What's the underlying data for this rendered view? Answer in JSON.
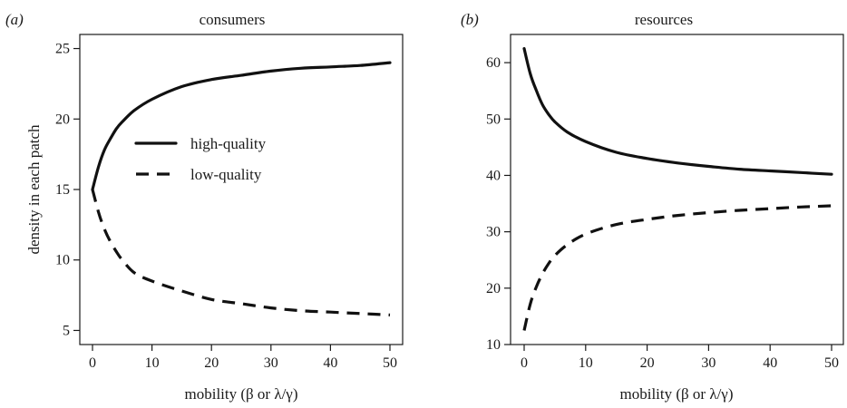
{
  "chart_data": [
    {
      "type": "line",
      "panel_label": "(a)",
      "title": "consumers",
      "ylabel": "density in each patch",
      "xlabel": "mobility (β or λ/γ)",
      "xlim": [
        0,
        50
      ],
      "ylim": [
        4,
        26
      ],
      "xticks": [
        0,
        10,
        20,
        30,
        40,
        50
      ],
      "yticks": [
        5,
        10,
        15,
        20,
        25
      ],
      "legend": {
        "position": "center",
        "entries": [
          {
            "label": "high-quality",
            "style": "solid"
          },
          {
            "label": "low-quality",
            "style": "dashed"
          }
        ]
      },
      "series": [
        {
          "name": "high-quality",
          "style": "solid",
          "x": [
            0,
            1,
            2,
            3,
            4,
            5,
            7,
            10,
            15,
            20,
            25,
            30,
            35,
            40,
            45,
            50
          ],
          "y": [
            15.0,
            16.6,
            17.8,
            18.6,
            19.3,
            19.8,
            20.6,
            21.4,
            22.3,
            22.8,
            23.1,
            23.4,
            23.6,
            23.7,
            23.8,
            24.0
          ]
        },
        {
          "name": "low-quality",
          "style": "dashed",
          "x": [
            0,
            1,
            2,
            3,
            4,
            5,
            7,
            10,
            15,
            20,
            25,
            30,
            35,
            40,
            45,
            50
          ],
          "y": [
            15.0,
            13.4,
            12.2,
            11.3,
            10.6,
            10.0,
            9.1,
            8.5,
            7.8,
            7.2,
            6.9,
            6.6,
            6.4,
            6.3,
            6.2,
            6.1
          ]
        }
      ]
    },
    {
      "type": "line",
      "panel_label": "(b)",
      "title": "resources",
      "ylabel": "",
      "xlabel": "mobility (β or λ/γ)",
      "xlim": [
        0,
        50
      ],
      "ylim": [
        10,
        65
      ],
      "xticks": [
        0,
        10,
        20,
        30,
        40,
        50
      ],
      "yticks": [
        10,
        20,
        30,
        40,
        50,
        60
      ],
      "series": [
        {
          "name": "high-quality",
          "style": "solid",
          "x": [
            0,
            1,
            2,
            3,
            4,
            5,
            7,
            10,
            15,
            20,
            25,
            30,
            35,
            40,
            45,
            50
          ],
          "y": [
            62.5,
            58.0,
            55.0,
            52.5,
            50.8,
            49.5,
            47.7,
            46.0,
            44.1,
            43.0,
            42.2,
            41.6,
            41.1,
            40.8,
            40.5,
            40.2
          ]
        },
        {
          "name": "low-quality",
          "style": "dashed",
          "x": [
            0,
            1,
            2,
            3,
            4,
            5,
            7,
            10,
            15,
            20,
            25,
            30,
            35,
            40,
            45,
            50
          ],
          "y": [
            12.5,
            17.2,
            20.3,
            22.6,
            24.4,
            25.8,
            27.7,
            29.6,
            31.3,
            32.2,
            32.9,
            33.4,
            33.8,
            34.1,
            34.4,
            34.6
          ]
        }
      ]
    }
  ]
}
